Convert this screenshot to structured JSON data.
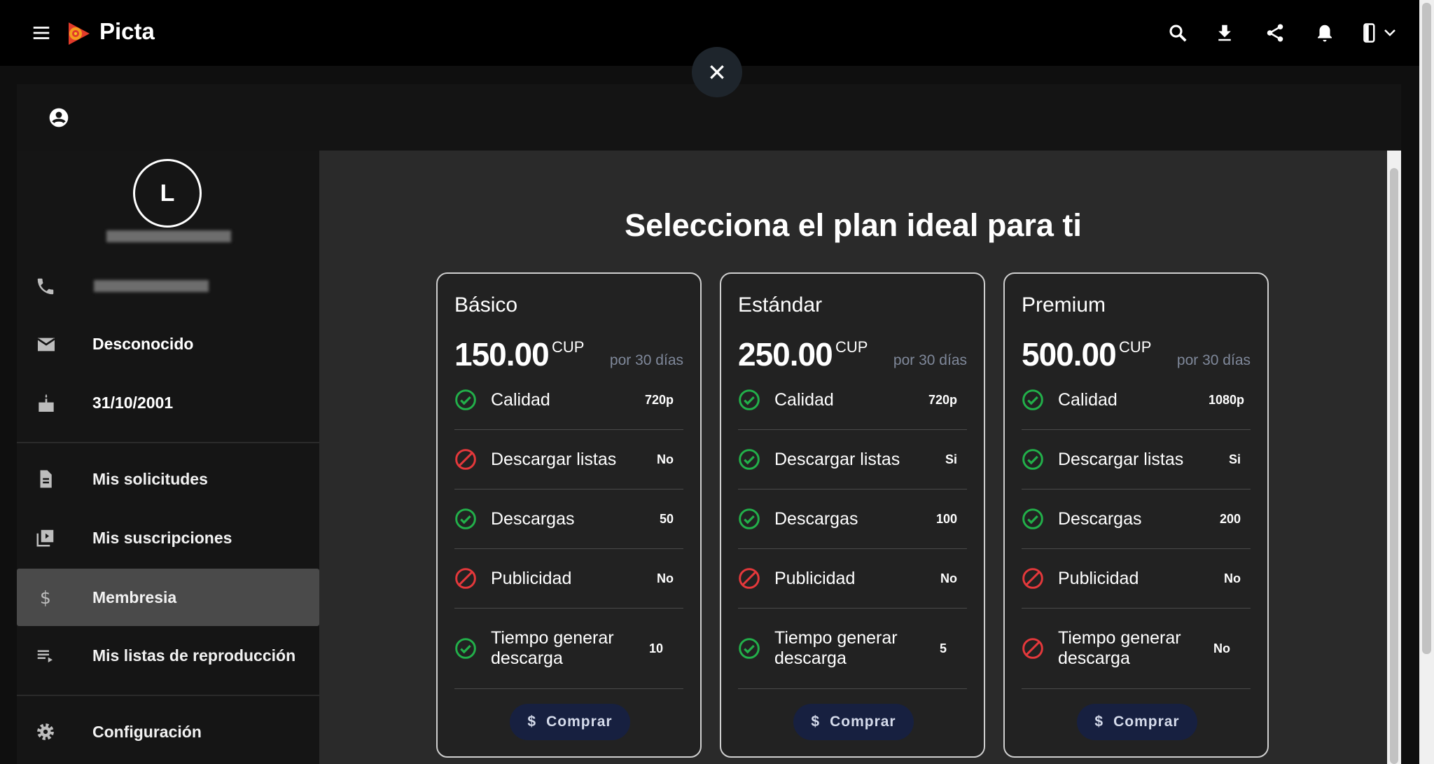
{
  "app": {
    "name": "Picta"
  },
  "topbar": {
    "icons": [
      "menu-icon",
      "search-icon",
      "download-icon",
      "share-icon",
      "bell-icon",
      "device-icon",
      "chevron-down-icon"
    ]
  },
  "sidebar": {
    "avatar_letter": "L",
    "email": "Desconocido",
    "birthday": "31/10/2001",
    "items": [
      {
        "label": "Mis solicitudes",
        "icon": "document-icon"
      },
      {
        "label": "Mis suscripciones",
        "icon": "subscriptions-icon"
      },
      {
        "label": "Membresia",
        "icon": "dollar-icon",
        "active": true
      },
      {
        "label": "Mis listas de reproducción",
        "icon": "playlist-icon"
      },
      {
        "label": "Configuración",
        "icon": "gear-icon"
      }
    ]
  },
  "main": {
    "title": "Selecciona el plan ideal para ti"
  },
  "colors": {
    "ok": "#22b04a",
    "no": "#e5383b",
    "button": "#172040",
    "period": "#7f889a"
  },
  "plans": [
    {
      "name": "Básico",
      "price": "150.00",
      "currency": "CUP",
      "period": "por 30 días",
      "buy": "Comprar",
      "features": [
        {
          "label": "Calidad",
          "value": "720p",
          "ok": true
        },
        {
          "label": "Descargar listas",
          "value": "No",
          "ok": false
        },
        {
          "label": "Descargas",
          "value": "50",
          "ok": true
        },
        {
          "label": "Publicidad",
          "value": "No",
          "ok": false
        },
        {
          "label": "Tiempo generar descarga",
          "value": "10",
          "ok": true
        }
      ]
    },
    {
      "name": "Estándar",
      "price": "250.00",
      "currency": "CUP",
      "period": "por 30 días",
      "buy": "Comprar",
      "features": [
        {
          "label": "Calidad",
          "value": "720p",
          "ok": true
        },
        {
          "label": "Descargar listas",
          "value": "Si",
          "ok": true
        },
        {
          "label": "Descargas",
          "value": "100",
          "ok": true
        },
        {
          "label": "Publicidad",
          "value": "No",
          "ok": false
        },
        {
          "label": "Tiempo generar descarga",
          "value": "5",
          "ok": true
        }
      ]
    },
    {
      "name": "Premium",
      "price": "500.00",
      "currency": "CUP",
      "period": "por 30 días",
      "buy": "Comprar",
      "features": [
        {
          "label": "Calidad",
          "value": "1080p",
          "ok": true
        },
        {
          "label": "Descargar listas",
          "value": "Si",
          "ok": true
        },
        {
          "label": "Descargas",
          "value": "200",
          "ok": true
        },
        {
          "label": "Publicidad",
          "value": "No",
          "ok": false
        },
        {
          "label": "Tiempo generar descarga",
          "value": "No",
          "ok": false
        }
      ]
    }
  ]
}
